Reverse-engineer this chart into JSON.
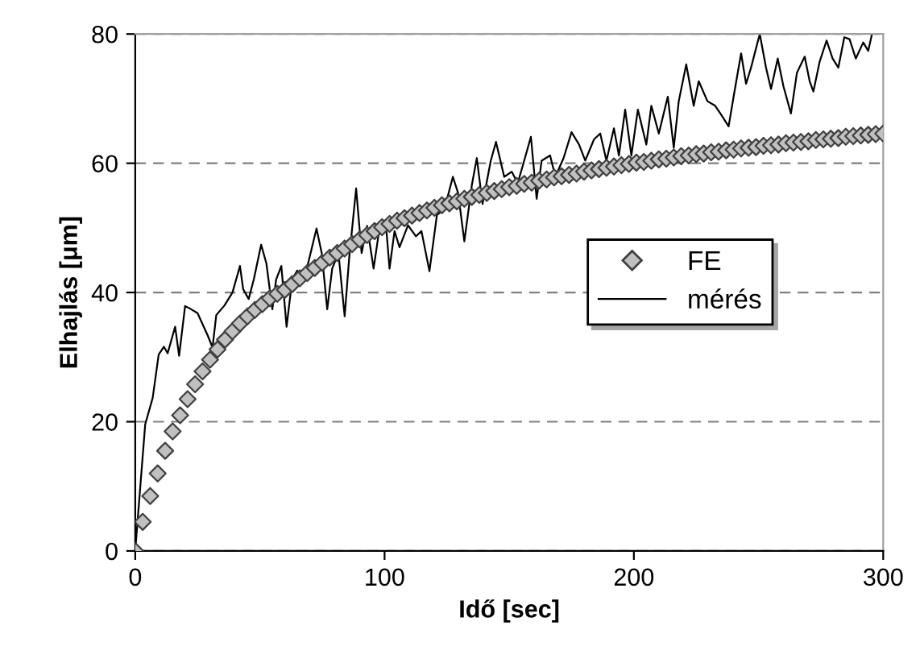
{
  "chart_data": {
    "type": "scatter",
    "xlabel": "Idő [sec]",
    "ylabel": "Elhajlás [μm]",
    "xlim": [
      0,
      300
    ],
    "xticks": [
      0,
      100,
      200,
      300
    ],
    "ylim": [
      0,
      80
    ],
    "yticks": [
      0,
      20,
      40,
      60,
      80
    ],
    "grid": "y",
    "legend": "right",
    "series": [
      {
        "name": "FE",
        "marker": "diamond",
        "color": "#c0c0c0",
        "x": [
          0,
          3,
          6,
          9,
          12,
          15,
          18,
          21,
          24,
          27,
          30,
          33,
          36,
          39,
          42,
          45,
          48,
          51,
          54,
          57,
          60,
          63,
          66,
          69,
          72,
          75,
          78,
          81,
          84,
          87,
          90,
          93,
          96,
          99,
          102,
          105,
          108,
          111,
          114,
          117,
          120,
          123,
          126,
          129,
          132,
          135,
          138,
          141,
          144,
          147,
          150,
          153,
          156,
          159,
          162,
          165,
          168,
          171,
          174,
          177,
          180,
          183,
          186,
          189,
          192,
          195,
          198,
          201,
          204,
          207,
          210,
          213,
          216,
          219,
          222,
          225,
          228,
          231,
          234,
          237,
          240,
          243,
          246,
          249,
          252,
          255,
          258,
          261,
          264,
          267,
          270,
          273,
          276,
          279,
          282,
          285,
          288,
          291,
          294,
          297,
          300
        ],
        "values": [
          0,
          4.5,
          8.5,
          12,
          15.5,
          18.5,
          21,
          23.5,
          25.8,
          27.8,
          29.6,
          31.2,
          32.7,
          34,
          35.2,
          36.3,
          37.3,
          38.2,
          39.1,
          39.8,
          40.4,
          41.3,
          42.2,
          43,
          43.8,
          44.6,
          45.4,
          46.1,
          46.8,
          47.5,
          48.2,
          48.9,
          49.5,
          50.1,
          50.6,
          51.1,
          51.5,
          51.9,
          52.3,
          52.7,
          53.1,
          53.5,
          53.8,
          54.1,
          54.5,
          54.8,
          55.1,
          55.4,
          55.7,
          56,
          56.3,
          56.5,
          56.8,
          57,
          57.3,
          57.5,
          57.8,
          58,
          58.2,
          58.4,
          58.7,
          58.9,
          59.1,
          59.3,
          59.5,
          59.7,
          59.9,
          60.1,
          60.2,
          60.4,
          60.6,
          60.7,
          60.9,
          61.1,
          61.2,
          61.4,
          61.5,
          61.7,
          61.8,
          62,
          62.1,
          62.3,
          62.4,
          62.5,
          62.7,
          62.8,
          62.9,
          63.1,
          63.2,
          63.3,
          63.4,
          63.6,
          63.7,
          63.8,
          63.9,
          64.1,
          64.2,
          64.3,
          64.4,
          64.5,
          64.6
        ]
      },
      {
        "name": "mérés",
        "type": "line",
        "marker": "none",
        "line_style": "solid",
        "color": "#000000",
        "x": [
          0,
          4,
          7,
          9.4,
          11.5,
          13,
          16,
          17.6,
          20,
          22,
          25,
          29,
          31,
          32.5,
          35.8,
          39,
          42,
          43.3,
          45.5,
          47.6,
          50.5,
          52.6,
          55,
          56.5,
          58.6,
          60.7,
          63,
          65,
          67.5,
          69.4,
          72.7,
          74.8,
          77,
          79,
          81.5,
          84,
          85.8,
          88.6,
          90.8,
          93,
          95.6,
          97.8,
          100.4,
          102,
          104,
          106,
          109.4,
          112.6,
          114.8,
          118,
          121,
          124,
          127.4,
          129.5,
          132,
          135,
          137,
          139.3,
          142.6,
          144.7,
          148,
          151,
          153.4,
          156,
          158.7,
          161,
          163,
          166.4,
          168.5,
          171.8,
          175,
          178,
          180.5,
          184,
          186.5,
          189,
          192,
          194,
          196.5,
          199,
          201.6,
          205,
          207,
          210,
          213.6,
          216,
          218,
          221,
          224,
          226,
          229.5,
          232.6,
          234.7,
          238,
          240,
          243,
          245,
          247,
          249,
          250.5,
          253,
          255,
          257.7,
          260,
          263,
          265.4,
          268.5,
          270.5,
          272,
          274.5,
          277.3,
          279.7,
          282,
          284.4,
          286.5,
          289,
          292,
          294,
          295.5
        ],
        "values": [
          0,
          19.6,
          23.7,
          30.4,
          31.6,
          30.6,
          34.7,
          30.2,
          37.9,
          37.5,
          36.8,
          33.4,
          31.5,
          36.5,
          38,
          40,
          44.1,
          40.5,
          39,
          42.1,
          47.4,
          44.5,
          37.4,
          42,
          44.1,
          34.7,
          42.1,
          43.4,
          42.1,
          44.6,
          49.9,
          46.1,
          37.4,
          43.7,
          46.1,
          36.3,
          45.3,
          56.1,
          46.1,
          50.3,
          43.7,
          49.5,
          51.2,
          43.7,
          49.5,
          47,
          50.4,
          48.7,
          49.5,
          43.3,
          52,
          52.9,
          57.9,
          55.4,
          47.9,
          56.6,
          60.8,
          53.7,
          60.4,
          63.3,
          57.9,
          58.7,
          56.9,
          60.4,
          64.1,
          54.5,
          60.4,
          61.2,
          57.9,
          60.8,
          64.8,
          62.9,
          60.4,
          63.7,
          64.6,
          60.4,
          65.4,
          61.2,
          68.3,
          61.2,
          68.3,
          62.9,
          68.9,
          64.6,
          70.3,
          62.4,
          69.6,
          75.3,
          68.9,
          72.7,
          69.6,
          68.9,
          67.7,
          65.7,
          70.3,
          77,
          72.3,
          74.8,
          77.8,
          80,
          74.8,
          71.5,
          76.2,
          71.9,
          67.7,
          74,
          76.5,
          72.7,
          71.1,
          75.7,
          79,
          76.2,
          74.8,
          79.5,
          79.2,
          76.2,
          78.7,
          77.4,
          80
        ]
      }
    ]
  }
}
